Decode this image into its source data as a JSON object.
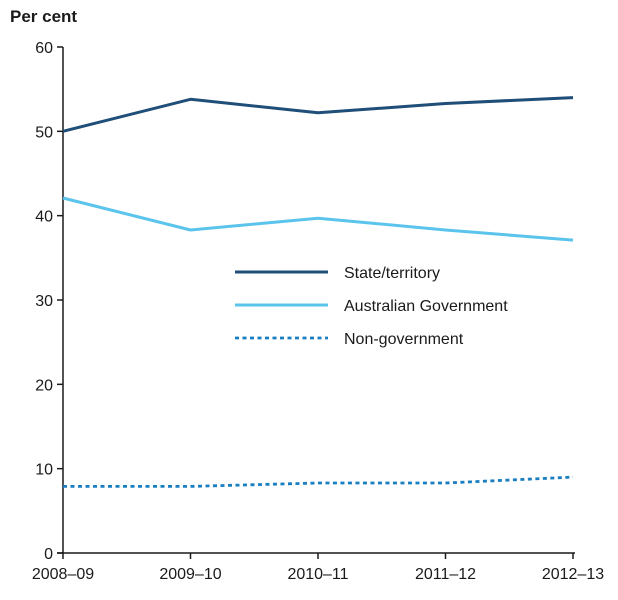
{
  "chart_data": {
    "type": "line",
    "title": "",
    "xlabel": "",
    "ylabel": "Per cent",
    "categories": [
      "2008–09",
      "2009–10",
      "2010–11",
      "2011–12",
      "2012–13"
    ],
    "ylim": [
      0,
      60
    ],
    "yticks": [
      0,
      10,
      20,
      30,
      40,
      50,
      60
    ],
    "grid": false,
    "legend_position": "center-right",
    "series": [
      {
        "name": "State/territory",
        "values": [
          50.0,
          53.8,
          52.2,
          53.3,
          54.0
        ],
        "color": "#1f4e79",
        "style": "solid"
      },
      {
        "name": "Australian Government",
        "values": [
          42.1,
          38.3,
          39.7,
          38.3,
          37.1
        ],
        "color": "#5bc4ec",
        "style": "solid"
      },
      {
        "name": "Non-government",
        "values": [
          7.9,
          7.9,
          8.3,
          8.3,
          9.0
        ],
        "color": "#1a7fc1",
        "style": "dotted"
      }
    ]
  }
}
